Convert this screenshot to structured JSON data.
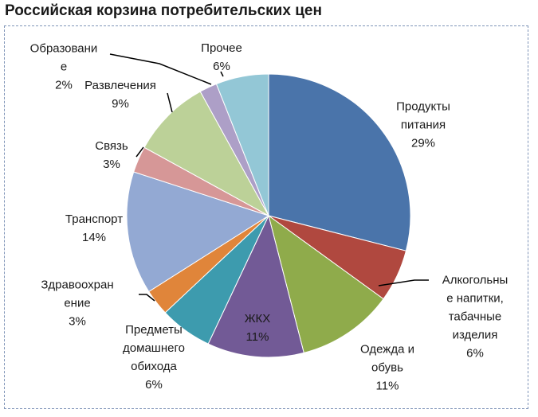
{
  "chart_data": {
    "type": "pie",
    "title": "Российская корзина потребительских цен",
    "slices": [
      {
        "label": "Продукты питания",
        "label_lines": [
          "Продукты",
          "питания"
        ],
        "value": 29,
        "value_label": "29%",
        "color": "#4a74aa"
      },
      {
        "label": "Алкогольные напитки, табачные изделия",
        "label_lines": [
          "Алкогольны",
          "е напитки,",
          "табачные",
          "изделия"
        ],
        "value": 6,
        "value_label": "6%",
        "color": "#b0483f"
      },
      {
        "label": "Одежда и обувь",
        "label_lines": [
          "Одежда и",
          "обувь"
        ],
        "value": 11,
        "value_label": "11%",
        "color": "#8fab4b"
      },
      {
        "label": "ЖКХ",
        "label_lines": [
          "ЖКХ"
        ],
        "value": 11,
        "value_label": "11%",
        "color": "#725a96"
      },
      {
        "label": "Предметы домашнего обихода",
        "label_lines": [
          "Предметы",
          "домашнего",
          "обихода"
        ],
        "value": 6,
        "value_label": "6%",
        "color": "#3d9bae"
      },
      {
        "label": "Здравоохранение",
        "label_lines": [
          "Здравоохран",
          "ение"
        ],
        "value": 3,
        "value_label": "3%",
        "color": "#e0853a"
      },
      {
        "label": "Транспорт",
        "label_lines": [
          "Транспорт"
        ],
        "value": 14,
        "value_label": "14%",
        "color": "#93a9d3"
      },
      {
        "label": "Связь",
        "label_lines": [
          "Связь"
        ],
        "value": 3,
        "value_label": "3%",
        "color": "#d69797"
      },
      {
        "label": "Развлечения",
        "label_lines": [
          "Развлечения"
        ],
        "value": 9,
        "value_label": "9%",
        "color": "#bcd198"
      },
      {
        "label": "Образование",
        "label_lines": [
          "Образовани",
          "е"
        ],
        "value": 2,
        "value_label": "2%",
        "color": "#ad9fc7"
      },
      {
        "label": "Прочее",
        "label_lines": [
          "Прочее"
        ],
        "value": 6,
        "value_label": "6%",
        "color": "#93c7d6"
      }
    ],
    "legend": "none"
  }
}
